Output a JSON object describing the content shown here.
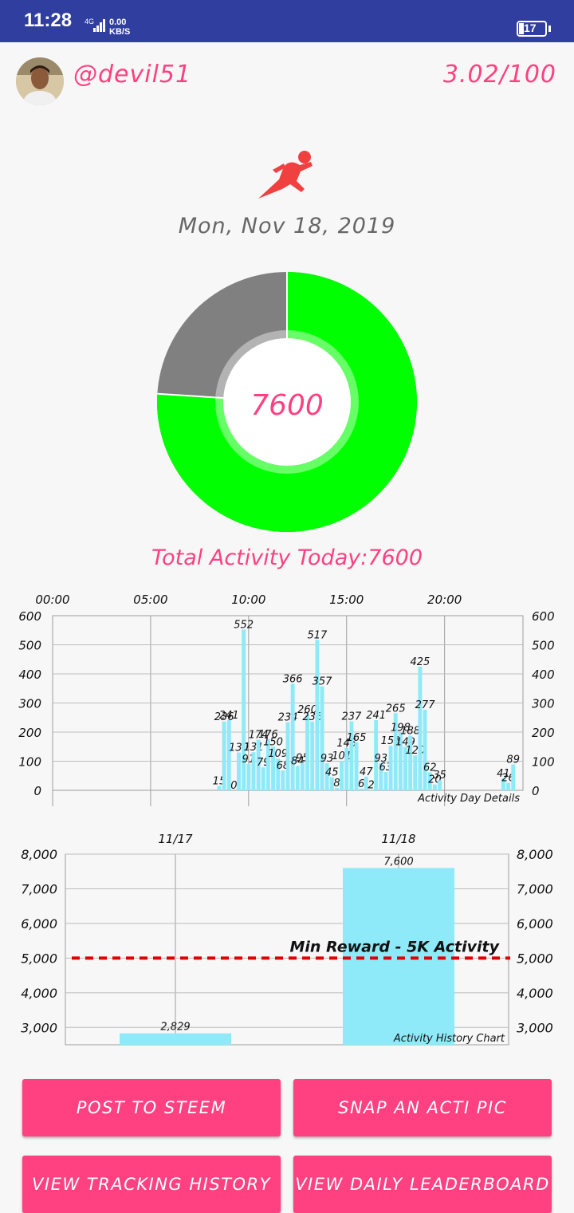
{
  "status_bar": {
    "time": "11:28",
    "network": "4G",
    "speed_value": "0.00",
    "speed_unit": "KB/S",
    "battery": "17"
  },
  "header": {
    "username": "@devil51",
    "score": "3.02/100"
  },
  "date": "Mon, Nov 18, 2019",
  "donut": {
    "center_value": "7600",
    "fraction_complete": 0.76,
    "colors": {
      "done": "#00ff00",
      "remaining": "#808080"
    }
  },
  "total_label": "Total Activity Today:7600",
  "chart_data": [
    {
      "type": "bar",
      "title": "Activity Day Details",
      "x_axis_labels": [
        "00:00",
        "05:00",
        "10:00",
        "15:00",
        "20:00"
      ],
      "y_ticks": [
        "600",
        "500",
        "400",
        "300",
        "200",
        "100",
        "0"
      ],
      "ylim": [
        0,
        600
      ],
      "x_range_hours": [
        0,
        24
      ],
      "bar_color": "#8eeaf8",
      "values": [
        {
          "x": 8.5,
          "y": 15
        },
        {
          "x": 8.75,
          "y": 236
        },
        {
          "x": 9.0,
          "y": 241
        },
        {
          "x": 9.25,
          "y": 0
        },
        {
          "x": 9.5,
          "y": 130
        },
        {
          "x": 9.75,
          "y": 552
        },
        {
          "x": 10.0,
          "y": 91
        },
        {
          "x": 10.25,
          "y": 131
        },
        {
          "x": 10.5,
          "y": 174
        },
        {
          "x": 10.75,
          "y": 79
        },
        {
          "x": 11.0,
          "y": 176
        },
        {
          "x": 11.25,
          "y": 150
        },
        {
          "x": 11.5,
          "y": 109
        },
        {
          "x": 11.75,
          "y": 68
        },
        {
          "x": 12.0,
          "y": 234
        },
        {
          "x": 12.25,
          "y": 366
        },
        {
          "x": 12.5,
          "y": 84
        },
        {
          "x": 12.75,
          "y": 95
        },
        {
          "x": 13.0,
          "y": 260
        },
        {
          "x": 13.25,
          "y": 236
        },
        {
          "x": 13.5,
          "y": 517
        },
        {
          "x": 13.75,
          "y": 357
        },
        {
          "x": 14.0,
          "y": 93
        },
        {
          "x": 14.25,
          "y": 45
        },
        {
          "x": 14.5,
          "y": 8
        },
        {
          "x": 14.75,
          "y": 101
        },
        {
          "x": 15.0,
          "y": 145
        },
        {
          "x": 15.25,
          "y": 237
        },
        {
          "x": 15.5,
          "y": 165
        },
        {
          "x": 15.75,
          "y": 6
        },
        {
          "x": 16.0,
          "y": 47
        },
        {
          "x": 16.25,
          "y": 2
        },
        {
          "x": 16.5,
          "y": 241
        },
        {
          "x": 16.75,
          "y": 93
        },
        {
          "x": 17.0,
          "y": 63
        },
        {
          "x": 17.25,
          "y": 153
        },
        {
          "x": 17.5,
          "y": 265
        },
        {
          "x": 17.75,
          "y": 198
        },
        {
          "x": 18.0,
          "y": 149
        },
        {
          "x": 18.25,
          "y": 188
        },
        {
          "x": 18.5,
          "y": 120
        },
        {
          "x": 18.75,
          "y": 425
        },
        {
          "x": 19.0,
          "y": 277
        },
        {
          "x": 19.25,
          "y": 62
        },
        {
          "x": 19.5,
          "y": 20
        },
        {
          "x": 19.75,
          "y": 35
        },
        {
          "x": 23.0,
          "y": 41
        },
        {
          "x": 23.25,
          "y": 26
        },
        {
          "x": 23.5,
          "y": 89
        }
      ]
    },
    {
      "type": "bar",
      "title": "Activity History Chart",
      "categories": [
        "11/17",
        "11/18"
      ],
      "values": [
        2829,
        7600
      ],
      "value_labels": [
        "2,829",
        "7,600"
      ],
      "y_ticks": [
        "8,000",
        "7,000",
        "6,000",
        "5,000",
        "4,000",
        "3,000"
      ],
      "ylim": [
        2500,
        8000
      ],
      "threshold": {
        "value": 5000,
        "label": "Min Reward - 5K Activity",
        "color": "#e00000"
      },
      "bar_color": "#8eeaf8"
    }
  ],
  "buttons": {
    "post": "POST TO STEEM",
    "snap": "SNAP AN ACTI PIC",
    "history": "VIEW TRACKING HISTORY",
    "leaderboard": "VIEW DAILY LEADERBOARD"
  }
}
